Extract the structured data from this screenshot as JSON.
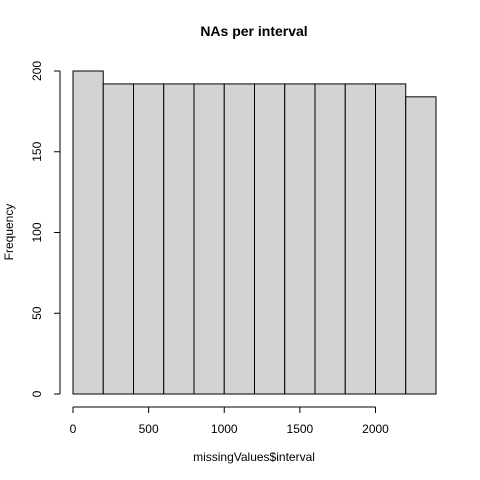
{
  "chart_data": {
    "type": "bar",
    "title": "NAs per interval",
    "xlabel": "missingValues$interval",
    "ylabel": "Frequency",
    "bins": [
      [
        0,
        200
      ],
      [
        200,
        400
      ],
      [
        400,
        600
      ],
      [
        600,
        800
      ],
      [
        800,
        1000
      ],
      [
        1000,
        1200
      ],
      [
        1200,
        1400
      ],
      [
        1400,
        1600
      ],
      [
        1600,
        1800
      ],
      [
        1800,
        2000
      ],
      [
        2000,
        2200
      ],
      [
        2200,
        2400
      ]
    ],
    "values": [
      200,
      192,
      192,
      192,
      192,
      192,
      192,
      192,
      192,
      192,
      192,
      184
    ],
    "xlim": [
      0,
      2400
    ],
    "ylim": [
      0,
      200
    ],
    "xticks": [
      0,
      500,
      1000,
      1500,
      2000
    ],
    "yticks": [
      0,
      50,
      100,
      150,
      200
    ],
    "bar_color": "#d3d3d3",
    "edge_color": "#000000",
    "grid": false
  }
}
